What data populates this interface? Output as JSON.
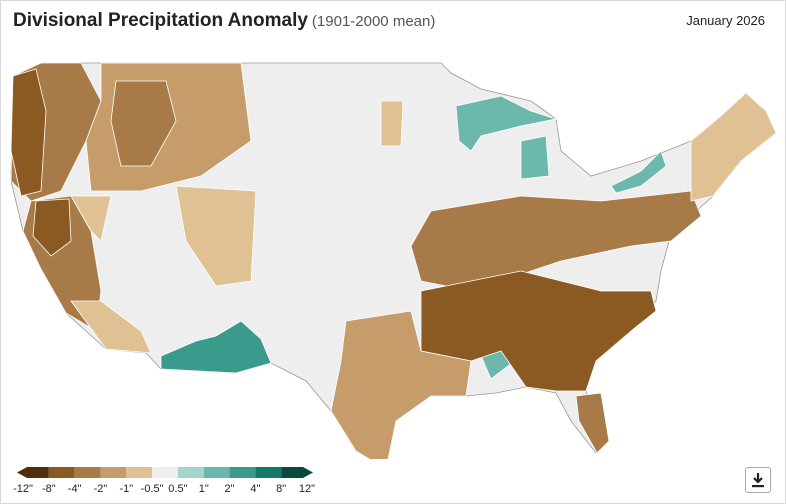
{
  "header": {
    "title": "Divisional Precipitation Anomaly",
    "subtitle": "(1901-2000 mean)",
    "date": "January 2026"
  },
  "legend": {
    "labels": [
      "-12\"",
      "-8\"",
      "-4\"",
      "-2\"",
      "-1\"",
      "-0.5\"",
      "0.5\"",
      "1\"",
      "2\"",
      "4\"",
      "8\"",
      "12\""
    ],
    "colors": [
      "#4f2f0c",
      "#8a5a22",
      "#a87a48",
      "#c59c6a",
      "#dfc194",
      "#eeeeee",
      "#a6d3cc",
      "#6cb8ac",
      "#3a9a8c",
      "#137a6a",
      "#0a4a3e"
    ]
  }
}
